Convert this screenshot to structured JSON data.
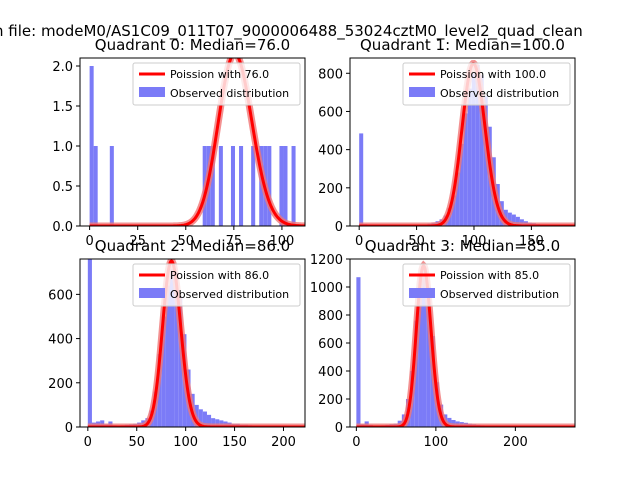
{
  "suptitle": "n file: modeM0/AS1C09_011T07_9000006488_53024cztM0_level2_quad_clean",
  "colors": {
    "hist": "#7b7bf7",
    "curve": "#ff0000",
    "curve_light": "#f07575"
  },
  "chart_data": [
    {
      "type": "bar",
      "title": "Quadrant 0: Median=76.0",
      "median": 76.0,
      "legend": {
        "line": "Poission with 76.0",
        "bar": "Observed distribution",
        "placement": "top-right"
      },
      "xlim": [
        -5,
        112
      ],
      "ylim": [
        0,
        2.1
      ],
      "xticks": [
        0,
        25,
        50,
        75,
        100
      ],
      "xtick_labels": [
        "0",
        "25",
        "50",
        "75",
        "100"
      ],
      "yticks": [
        0,
        0.5,
        1,
        1.5,
        2
      ],
      "ytick_labels": [
        "0.0",
        "0.5",
        "1.0",
        "1.5",
        "2.0"
      ],
      "bin_width": 2.1,
      "hist": [
        [
          0,
          2
        ],
        [
          2.1,
          1
        ],
        [
          10.5,
          1
        ],
        [
          58.8,
          1
        ],
        [
          60.9,
          1
        ],
        [
          63,
          1
        ],
        [
          67.2,
          1
        ],
        [
          73.5,
          1
        ],
        [
          77.7,
          1
        ],
        [
          84,
          1
        ],
        [
          88.2,
          1
        ],
        [
          90.3,
          1
        ],
        [
          92.4,
          1
        ],
        [
          98.7,
          1
        ],
        [
          100.8,
          1
        ],
        [
          105,
          1
        ]
      ],
      "curve_peak": 2.15
    },
    {
      "type": "bar",
      "title": "Quadrant 1: Median=100.0",
      "median": 100.0,
      "legend": {
        "line": "Poission with 100.0",
        "bar": "Observed distribution",
        "placement": "top-right"
      },
      "xlim": [
        -8,
        188
      ],
      "ylim": [
        0,
        880
      ],
      "xticks": [
        0,
        50,
        100,
        150
      ],
      "xtick_labels": [
        "0",
        "50",
        "100",
        "150"
      ],
      "yticks": [
        0,
        200,
        400,
        600,
        800
      ],
      "ytick_labels": [
        "0",
        "200",
        "400",
        "600",
        "800"
      ],
      "bin_width": 3.5,
      "hist": [
        [
          0,
          485
        ],
        [
          3.5,
          10
        ],
        [
          7,
          5
        ],
        [
          10.5,
          3
        ],
        [
          14,
          3
        ],
        [
          17.5,
          2
        ],
        [
          21,
          2
        ],
        [
          24.5,
          2
        ],
        [
          28,
          2
        ],
        [
          31.5,
          2
        ],
        [
          35,
          2
        ],
        [
          38.5,
          2
        ],
        [
          42,
          3
        ],
        [
          45.5,
          3
        ],
        [
          49,
          4
        ],
        [
          52.5,
          5
        ],
        [
          56,
          8
        ],
        [
          59.5,
          12
        ],
        [
          63,
          18
        ],
        [
          66.5,
          25
        ],
        [
          70,
          35
        ],
        [
          73.5,
          55
        ],
        [
          77,
          95
        ],
        [
          80.5,
          160
        ],
        [
          84,
          280
        ],
        [
          87.5,
          430
        ],
        [
          91,
          590
        ],
        [
          94.5,
          720
        ],
        [
          98,
          800
        ],
        [
          101.5,
          845
        ],
        [
          105,
          790
        ],
        [
          108.5,
          680
        ],
        [
          112,
          520
        ],
        [
          115.5,
          360
        ],
        [
          119,
          220
        ],
        [
          122.5,
          130
        ],
        [
          126,
          85
        ],
        [
          129.5,
          70
        ],
        [
          133,
          60
        ],
        [
          136.5,
          48
        ],
        [
          140,
          35
        ],
        [
          143.5,
          25
        ],
        [
          147,
          18
        ],
        [
          150.5,
          15
        ],
        [
          154,
          10
        ],
        [
          157.5,
          8
        ],
        [
          161,
          6
        ],
        [
          164.5,
          5
        ],
        [
          168,
          4
        ],
        [
          171.5,
          3
        ],
        [
          175,
          2
        ]
      ],
      "curve_peak": 850
    },
    {
      "type": "bar",
      "title": "Quadrant 2: Median=86.0",
      "median": 86.0,
      "legend": {
        "line": "Poission with 86.0",
        "bar": "Observed distribution",
        "placement": "top-right"
      },
      "xlim": [
        -8,
        222
      ],
      "ylim": [
        0,
        760
      ],
      "xticks": [
        0,
        50,
        100,
        150,
        200
      ],
      "xtick_labels": [
        "0",
        "50",
        "100",
        "150",
        "200"
      ],
      "yticks": [
        0,
        200,
        400,
        600
      ],
      "ytick_labels": [
        "0",
        "200",
        "400",
        "600"
      ],
      "bin_width": 4.2,
      "hist": [
        [
          0,
          760
        ],
        [
          4.2,
          20
        ],
        [
          8.4,
          25
        ],
        [
          12.6,
          30
        ],
        [
          16.8,
          12
        ],
        [
          21,
          25
        ],
        [
          25.2,
          8
        ],
        [
          29.4,
          6
        ],
        [
          33.6,
          8
        ],
        [
          37.8,
          10
        ],
        [
          42,
          12
        ],
        [
          46.2,
          15
        ],
        [
          50.4,
          20
        ],
        [
          54.6,
          30
        ],
        [
          58.8,
          40
        ],
        [
          63,
          75
        ],
        [
          67.2,
          160
        ],
        [
          71.4,
          330
        ],
        [
          75.6,
          500
        ],
        [
          79.8,
          640
        ],
        [
          84,
          715
        ],
        [
          88.2,
          700
        ],
        [
          92.4,
          590
        ],
        [
          96.6,
          420
        ],
        [
          100.8,
          260
        ],
        [
          105,
          150
        ],
        [
          109.2,
          100
        ],
        [
          113.4,
          80
        ],
        [
          117.6,
          70
        ],
        [
          121.8,
          55
        ],
        [
          126,
          40
        ],
        [
          130.2,
          35
        ],
        [
          134.4,
          30
        ],
        [
          138.6,
          25
        ],
        [
          142.8,
          20
        ],
        [
          147,
          15
        ],
        [
          151.2,
          15
        ],
        [
          155.4,
          10
        ],
        [
          159.6,
          10
        ],
        [
          163.8,
          8
        ],
        [
          168,
          6
        ],
        [
          172.2,
          5
        ],
        [
          176.4,
          4
        ],
        [
          180.6,
          3
        ],
        [
          184.8,
          3
        ],
        [
          189,
          2
        ],
        [
          193.2,
          2
        ],
        [
          197.4,
          2
        ],
        [
          201.6,
          2
        ],
        [
          205.8,
          1
        ]
      ],
      "curve_peak": 750
    },
    {
      "type": "bar",
      "title": "Quadrant 3: Median=85.0",
      "median": 85.0,
      "legend": {
        "line": "Poission with 85.0",
        "bar": "Observed distribution",
        "placement": "top-right"
      },
      "xlim": [
        -8,
        275
      ],
      "ylim": [
        0,
        1200
      ],
      "xticks": [
        0,
        100,
        200
      ],
      "xtick_labels": [
        "0",
        "100",
        "200"
      ],
      "yticks": [
        0,
        200,
        400,
        600,
        800,
        1000,
        1200
      ],
      "ytick_labels": [
        "0",
        "200",
        "400",
        "600",
        "800",
        "1000",
        "1200"
      ],
      "bin_width": 5.2,
      "hist": [
        [
          0,
          1070
        ],
        [
          5.2,
          20
        ],
        [
          10.4,
          40
        ],
        [
          15.6,
          15
        ],
        [
          20.8,
          8
        ],
        [
          26,
          10
        ],
        [
          31.2,
          12
        ],
        [
          36.4,
          15
        ],
        [
          41.6,
          20
        ],
        [
          46.8,
          25
        ],
        [
          52,
          45
        ],
        [
          57.2,
          90
        ],
        [
          62.4,
          200
        ],
        [
          67.6,
          400
        ],
        [
          72.8,
          760
        ],
        [
          78,
          1080
        ],
        [
          83.2,
          1140
        ],
        [
          88.4,
          1000
        ],
        [
          93.6,
          650
        ],
        [
          98.8,
          320
        ],
        [
          104,
          160
        ],
        [
          109.2,
          90
        ],
        [
          114.4,
          65
        ],
        [
          119.6,
          50
        ],
        [
          124.8,
          40
        ],
        [
          130,
          35
        ],
        [
          135.2,
          30
        ],
        [
          140.4,
          25
        ],
        [
          145.6,
          20
        ],
        [
          150.8,
          15
        ],
        [
          156,
          12
        ],
        [
          161.2,
          10
        ],
        [
          166.4,
          8
        ],
        [
          171.6,
          6
        ],
        [
          176.8,
          5
        ],
        [
          182,
          4
        ],
        [
          187.2,
          3
        ],
        [
          192.4,
          3
        ],
        [
          197.6,
          2
        ],
        [
          202.8,
          2
        ],
        [
          208,
          2
        ],
        [
          213.2,
          1
        ],
        [
          218.4,
          1
        ],
        [
          223.6,
          1
        ],
        [
          228.8,
          1
        ]
      ],
      "curve_peak": 1150
    }
  ]
}
